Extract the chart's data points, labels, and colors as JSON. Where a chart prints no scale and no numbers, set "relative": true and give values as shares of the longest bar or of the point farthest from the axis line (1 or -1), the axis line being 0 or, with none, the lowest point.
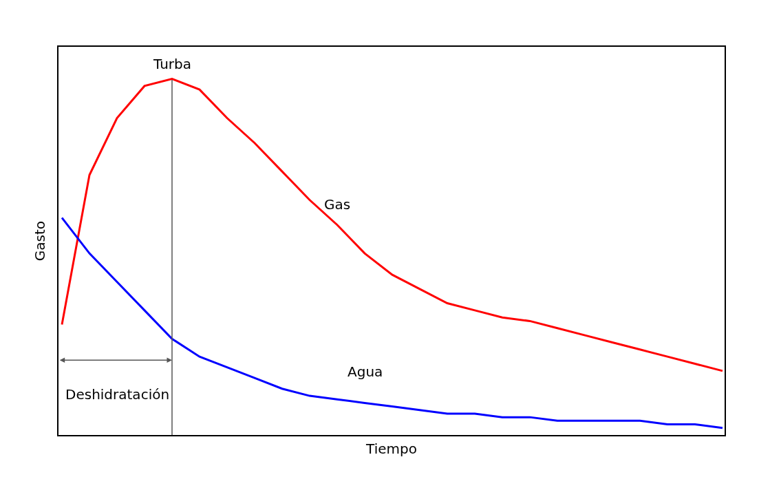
{
  "chart_data": {
    "type": "line",
    "relative": true,
    "xlabel": "Tiempo",
    "ylabel": "Gasto",
    "legend": false,
    "categories": [
      null,
      null,
      null,
      null,
      null,
      null,
      null,
      null,
      null,
      null,
      null,
      null,
      null,
      null,
      null,
      null,
      null,
      null,
      null,
      null,
      null,
      null,
      null,
      null,
      null
    ],
    "series": [
      {
        "name": "Gas",
        "color": "#ff0000",
        "values": [
          0.31,
          0.73,
          0.89,
          0.98,
          1,
          0.97,
          0.89,
          0.82,
          0.74,
          0.66,
          0.59,
          0.51,
          0.45,
          0.41,
          0.37,
          0.35,
          0.33,
          0.32,
          0.3,
          0.28,
          0.26,
          0.24,
          0.22,
          0.2,
          0.18
        ]
      },
      {
        "name": "Agua",
        "color": "#0000ff",
        "values": [
          0.61,
          0.51,
          0.43,
          0.35,
          0.27,
          0.22,
          0.19,
          0.16,
          0.13,
          0.11,
          0.1,
          0.09,
          0.08,
          0.07,
          0.06,
          0.06,
          0.05,
          0.05,
          0.04,
          0.04,
          0.04,
          0.04,
          0.03,
          0.03,
          0.02
        ]
      }
    ],
    "annotations": [
      "Turba",
      "Deshidratación"
    ]
  }
}
